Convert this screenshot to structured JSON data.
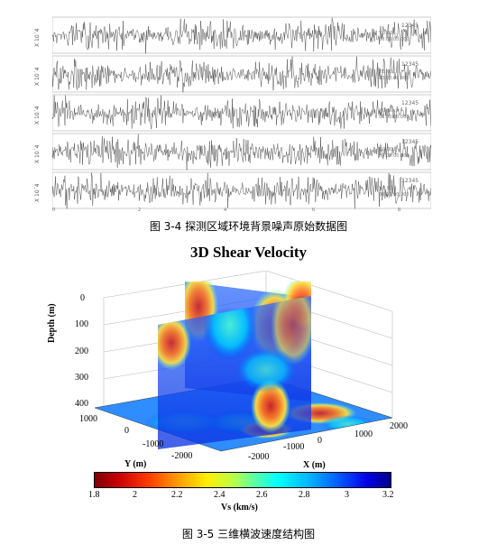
{
  "figure1": {
    "caption": "图 3-4  探测区域环境背景噪声原始数据图",
    "traces": [
      {
        "ylabel": "X 10´4",
        "station": "12345",
        "meta": [
          "Y:0.00...",
          "00:00:00.000"
        ]
      },
      {
        "ylabel": "X 10´4",
        "station": "12345",
        "meta": [
          "Y:0.00...",
          "00:00:00.000"
        ]
      },
      {
        "ylabel": "X 10´4",
        "station": "12345",
        "meta": [
          "Y:0.00...",
          "00:00:00.000"
        ]
      },
      {
        "ylabel": "X 10´4",
        "station": "12345",
        "meta": [
          "Y:0.00...",
          "00:00:00.000"
        ]
      },
      {
        "ylabel": "X 10´4",
        "station": "12345",
        "meta": [
          "Y:0.00...",
          "00:00:00.000"
        ]
      }
    ],
    "xticks": [
      "0",
      "2",
      "4",
      "6",
      "8"
    ]
  },
  "figure2": {
    "title": "3D Shear Velocity",
    "caption": "图 3-5  三维横波速度结构图",
    "depth_label": "Depth (m)",
    "depth_ticks": [
      "0",
      "100",
      "200",
      "300",
      "400"
    ],
    "y_label": "Y (m)",
    "y_ticks": [
      "1000",
      "0",
      "-1000",
      "-2000"
    ],
    "x_label": "X (m)",
    "x_ticks": [
      "-2000",
      "-1000",
      "0",
      "1000",
      "2000"
    ],
    "colorbar_label": "Vs (km/s)",
    "colorbar_ticks": [
      "1.8",
      "2",
      "2.2",
      "2.4",
      "2.6",
      "2.8",
      "3",
      "3.2"
    ],
    "colormap": [
      "#800000",
      "#ff3a00",
      "#ffef00",
      "#50ffb0",
      "#00ffff",
      "#0060ff",
      "#00008a"
    ]
  }
}
